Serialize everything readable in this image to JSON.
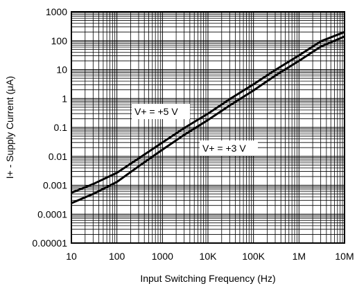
{
  "chart_data": {
    "type": "line",
    "xlabel": "Input Switching Frequency (Hz)",
    "ylabel": "I+ - Supply Current (μA)",
    "x_scale": "log",
    "y_scale": "log",
    "xlim": [
      10,
      10000000
    ],
    "ylim": [
      1e-05,
      1000
    ],
    "grid": true,
    "x_tick_labels": [
      "10",
      "100",
      "1000",
      "10K",
      "100K",
      "1M",
      "10M"
    ],
    "y_tick_labels": [
      "0.00001",
      "0.0001",
      "0.001",
      "0.01",
      "0.1",
      "1",
      "10",
      "100",
      "1000"
    ],
    "series": [
      {
        "name": "V+ = +5 V",
        "x": [
          10,
          30,
          100,
          300,
          1000,
          3000,
          10000,
          30000,
          100000,
          300000,
          1000000,
          3000000,
          10000000
        ],
        "y": [
          0.00055,
          0.0011,
          0.0027,
          0.0085,
          0.03,
          0.095,
          0.3,
          0.95,
          3.1,
          9.7,
          31,
          95,
          200
        ]
      },
      {
        "name": "V+ = +3 V",
        "x": [
          10,
          30,
          100,
          300,
          1000,
          3000,
          10000,
          30000,
          100000,
          300000,
          1000000,
          3000000,
          10000000
        ],
        "y": [
          0.00024,
          0.0005,
          0.0013,
          0.0045,
          0.017,
          0.055,
          0.18,
          0.57,
          1.9,
          6.2,
          20,
          62,
          140
        ]
      }
    ]
  }
}
